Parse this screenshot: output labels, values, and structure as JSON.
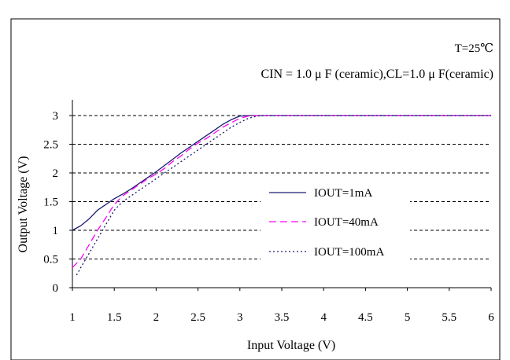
{
  "chart_data": {
    "type": "line",
    "annotations": {
      "temperature": "T=25℃",
      "conditions": "CIN = 1.0 μ F (ceramic),CL=1.0 μ F(ceramic)"
    },
    "xlabel": "Input Voltage  (V)",
    "ylabel": "Output Voltage  (V)",
    "xlim": [
      1,
      6
    ],
    "ylim": [
      0,
      3
    ],
    "x_ticks": [
      "1",
      "1.5",
      "2",
      "2.5",
      "3",
      "3.5",
      "4",
      "4.5",
      "5",
      "5.5",
      "6"
    ],
    "y_ticks": [
      "0",
      "0.5",
      "1",
      "1.5",
      "2",
      "2.5",
      "3"
    ],
    "grid": "horizontal dashed",
    "legend_position": "center-right",
    "series": [
      {
        "name": "IOUT=1mA",
        "color": "#1a1a6e",
        "dash": "solid",
        "points": [
          [
            1.0,
            1.0
          ],
          [
            1.1,
            1.08
          ],
          [
            1.2,
            1.2
          ],
          [
            1.3,
            1.35
          ],
          [
            1.4,
            1.45
          ],
          [
            1.5,
            1.55
          ],
          [
            1.6,
            1.63
          ],
          [
            1.7,
            1.72
          ],
          [
            1.8,
            1.82
          ],
          [
            1.9,
            1.92
          ],
          [
            2.0,
            2.02
          ],
          [
            2.1,
            2.13
          ],
          [
            2.2,
            2.24
          ],
          [
            2.3,
            2.35
          ],
          [
            2.4,
            2.45
          ],
          [
            2.5,
            2.55
          ],
          [
            2.6,
            2.65
          ],
          [
            2.7,
            2.75
          ],
          [
            2.8,
            2.85
          ],
          [
            2.9,
            2.93
          ],
          [
            3.0,
            2.99
          ],
          [
            3.1,
            3.0
          ],
          [
            3.5,
            3.0
          ],
          [
            4.0,
            3.0
          ],
          [
            4.5,
            3.0
          ],
          [
            5.0,
            3.0
          ],
          [
            5.5,
            3.0
          ],
          [
            6.0,
            3.0
          ]
        ]
      },
      {
        "name": "IOUT=40mA",
        "color": "#ff00ff",
        "dash": "long-dash",
        "points": [
          [
            1.0,
            0.35
          ],
          [
            1.1,
            0.5
          ],
          [
            1.2,
            0.75
          ],
          [
            1.3,
            1.0
          ],
          [
            1.4,
            1.22
          ],
          [
            1.5,
            1.45
          ],
          [
            1.6,
            1.6
          ],
          [
            1.7,
            1.7
          ],
          [
            1.8,
            1.8
          ],
          [
            1.9,
            1.9
          ],
          [
            2.0,
            1.98
          ],
          [
            2.1,
            2.08
          ],
          [
            2.2,
            2.2
          ],
          [
            2.3,
            2.3
          ],
          [
            2.4,
            2.42
          ],
          [
            2.5,
            2.52
          ],
          [
            2.6,
            2.6
          ],
          [
            2.7,
            2.7
          ],
          [
            2.8,
            2.8
          ],
          [
            2.9,
            2.88
          ],
          [
            3.0,
            2.95
          ],
          [
            3.1,
            2.99
          ],
          [
            3.2,
            3.0
          ],
          [
            4.0,
            3.0
          ],
          [
            5.0,
            3.0
          ],
          [
            6.0,
            3.0
          ]
        ]
      },
      {
        "name": "IOUT=100mA",
        "color": "#1a1a6e",
        "dash": "dot",
        "points": [
          [
            1.05,
            0.22
          ],
          [
            1.1,
            0.35
          ],
          [
            1.2,
            0.6
          ],
          [
            1.3,
            0.85
          ],
          [
            1.4,
            1.1
          ],
          [
            1.5,
            1.35
          ],
          [
            1.6,
            1.5
          ],
          [
            1.7,
            1.6
          ],
          [
            1.8,
            1.7
          ],
          [
            1.9,
            1.8
          ],
          [
            2.0,
            1.9
          ],
          [
            2.1,
            2.0
          ],
          [
            2.2,
            2.1
          ],
          [
            2.3,
            2.2
          ],
          [
            2.4,
            2.3
          ],
          [
            2.5,
            2.4
          ],
          [
            2.6,
            2.5
          ],
          [
            2.7,
            2.6
          ],
          [
            2.8,
            2.7
          ],
          [
            2.9,
            2.8
          ],
          [
            3.0,
            2.88
          ],
          [
            3.1,
            2.95
          ],
          [
            3.2,
            2.99
          ],
          [
            3.3,
            3.0
          ],
          [
            4.0,
            3.0
          ],
          [
            5.0,
            3.0
          ],
          [
            6.0,
            3.0
          ]
        ]
      }
    ]
  }
}
